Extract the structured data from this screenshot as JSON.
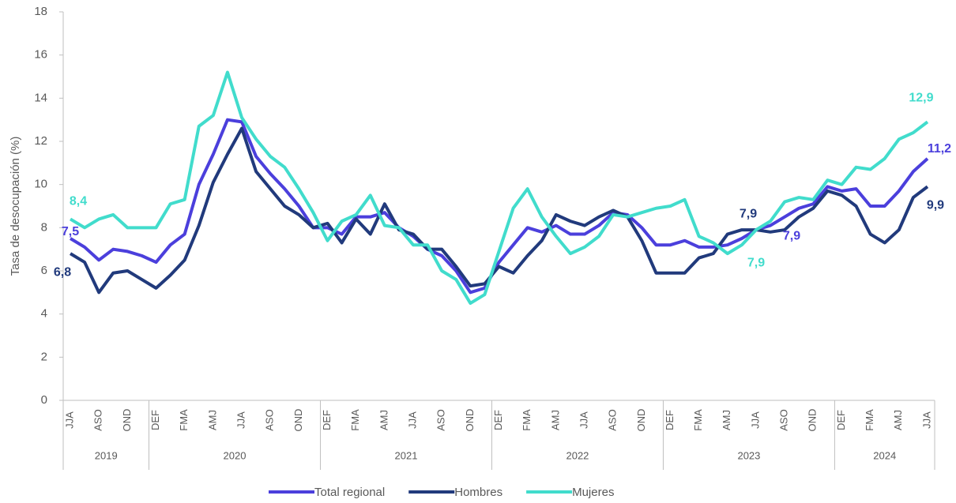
{
  "chart_data": {
    "type": "line",
    "y_label": "Tasa de desocupación (%)",
    "categories": [
      "JJA",
      null,
      "ASO",
      null,
      "OND",
      null,
      "DEF",
      null,
      "FMA",
      null,
      "AMJ",
      null,
      "JJA",
      null,
      "ASO",
      null,
      "OND",
      null,
      "DEF",
      null,
      "FMA",
      null,
      "AMJ",
      null,
      "JJA",
      null,
      "ASO",
      null,
      "OND",
      null,
      "DEF",
      null,
      "FMA",
      null,
      "AMJ",
      null,
      "JJA",
      null,
      "ASO",
      null,
      "OND",
      null,
      "DEF",
      null,
      "FMA",
      null,
      "AMJ",
      null,
      "JJA",
      null,
      "ASO",
      null,
      "OND",
      null,
      "DEF",
      null,
      "FMA",
      null,
      "AMJ",
      null,
      "JJA"
    ],
    "groups": [
      {
        "label": "2019",
        "start": 0
      },
      {
        "label": "2020",
        "start": 6
      },
      {
        "label": "2021",
        "start": 18
      },
      {
        "label": "2022",
        "start": 30
      },
      {
        "label": "2023",
        "start": 42
      },
      {
        "label": "2024",
        "start": 54
      }
    ],
    "ylim": [
      0,
      18
    ],
    "yticks": [
      0,
      2,
      4,
      6,
      8,
      10,
      12,
      14,
      16,
      18
    ],
    "series": [
      {
        "name": "Total regional",
        "color": "#4b3fdc",
        "values": [
          7.5,
          7.1,
          6.5,
          7.0,
          6.9,
          6.7,
          6.4,
          7.2,
          7.7,
          10.0,
          11.4,
          13.0,
          12.9,
          11.3,
          10.5,
          9.8,
          9.0,
          8.0,
          8.0,
          7.7,
          8.5,
          8.5,
          8.7,
          8.0,
          7.6,
          7.0,
          6.7,
          6.0,
          5.0,
          5.2,
          6.4,
          7.2,
          8.0,
          7.8,
          8.1,
          7.7,
          7.7,
          8.1,
          8.7,
          8.6,
          8.0,
          7.2,
          7.2,
          7.4,
          7.1,
          7.1,
          7.2,
          7.5,
          7.9,
          8.1,
          8.5,
          8.9,
          9.1,
          9.9,
          9.7,
          9.8,
          9.0,
          9.0,
          9.7,
          10.6,
          11.2
        ],
        "value_labels": [
          "7,5",
          null,
          null,
          null,
          null,
          null,
          null,
          null,
          null,
          null,
          null,
          null,
          null,
          null,
          null,
          null,
          null,
          null,
          null,
          null,
          null,
          null,
          null,
          null,
          null,
          null,
          null,
          null,
          null,
          null,
          null,
          null,
          null,
          null,
          null,
          null,
          null,
          null,
          null,
          null,
          null,
          null,
          null,
          null,
          null,
          null,
          null,
          null,
          "7,9",
          null,
          null,
          null,
          null,
          null,
          null,
          null,
          null,
          null,
          null,
          null,
          "11,2"
        ]
      },
      {
        "name": "Hombres",
        "color": "#213a7c",
        "values": [
          6.8,
          6.4,
          5.0,
          5.9,
          6.0,
          5.6,
          5.2,
          5.8,
          6.5,
          8.1,
          10.1,
          11.4,
          12.6,
          10.6,
          9.8,
          9.0,
          8.6,
          8.0,
          8.2,
          7.3,
          8.4,
          7.7,
          9.1,
          7.9,
          7.7,
          7.0,
          7.0,
          6.2,
          5.3,
          5.4,
          6.2,
          5.9,
          6.7,
          7.4,
          8.6,
          8.3,
          8.1,
          8.5,
          8.8,
          8.5,
          7.4,
          5.9,
          5.9,
          5.9,
          6.6,
          6.8,
          7.7,
          7.9,
          7.9,
          7.8,
          7.9,
          8.5,
          8.9,
          9.7,
          9.5,
          9.0,
          7.7,
          7.3,
          7.9,
          9.4,
          9.9
        ],
        "value_labels": [
          "6,8",
          null,
          null,
          null,
          null,
          null,
          null,
          null,
          null,
          null,
          null,
          null,
          null,
          null,
          null,
          null,
          null,
          null,
          null,
          null,
          null,
          null,
          null,
          null,
          null,
          null,
          null,
          null,
          null,
          null,
          null,
          null,
          null,
          null,
          null,
          null,
          null,
          null,
          null,
          null,
          null,
          null,
          null,
          null,
          null,
          null,
          null,
          null,
          "7,9",
          null,
          null,
          null,
          null,
          null,
          null,
          null,
          null,
          null,
          null,
          null,
          "9,9"
        ]
      },
      {
        "name": "Mujeres",
        "color": "#41dccc",
        "values": [
          8.4,
          8.0,
          8.4,
          8.6,
          8.0,
          8.0,
          8.0,
          9.1,
          9.3,
          12.7,
          13.2,
          15.2,
          13.1,
          12.1,
          11.3,
          10.8,
          9.8,
          8.7,
          7.4,
          8.3,
          8.6,
          9.5,
          8.1,
          8.0,
          7.2,
          7.2,
          6.0,
          5.6,
          4.5,
          4.9,
          6.9,
          8.9,
          9.8,
          8.5,
          7.6,
          6.8,
          7.1,
          7.6,
          8.6,
          8.5,
          8.7,
          8.9,
          9.0,
          9.3,
          7.6,
          7.3,
          6.8,
          7.2,
          7.9,
          8.3,
          9.2,
          9.4,
          9.3,
          10.2,
          10.0,
          10.8,
          10.7,
          11.2,
          12.1,
          12.4,
          12.9
        ],
        "value_labels": [
          "8,4",
          null,
          null,
          null,
          null,
          null,
          null,
          null,
          null,
          null,
          null,
          null,
          null,
          null,
          null,
          null,
          null,
          null,
          null,
          null,
          null,
          null,
          null,
          null,
          null,
          null,
          null,
          null,
          null,
          null,
          null,
          null,
          null,
          null,
          null,
          null,
          null,
          null,
          null,
          null,
          null,
          null,
          null,
          null,
          null,
          null,
          null,
          null,
          "7,9",
          null,
          null,
          null,
          null,
          null,
          null,
          null,
          null,
          null,
          null,
          null,
          "12,9"
        ]
      }
    ]
  }
}
